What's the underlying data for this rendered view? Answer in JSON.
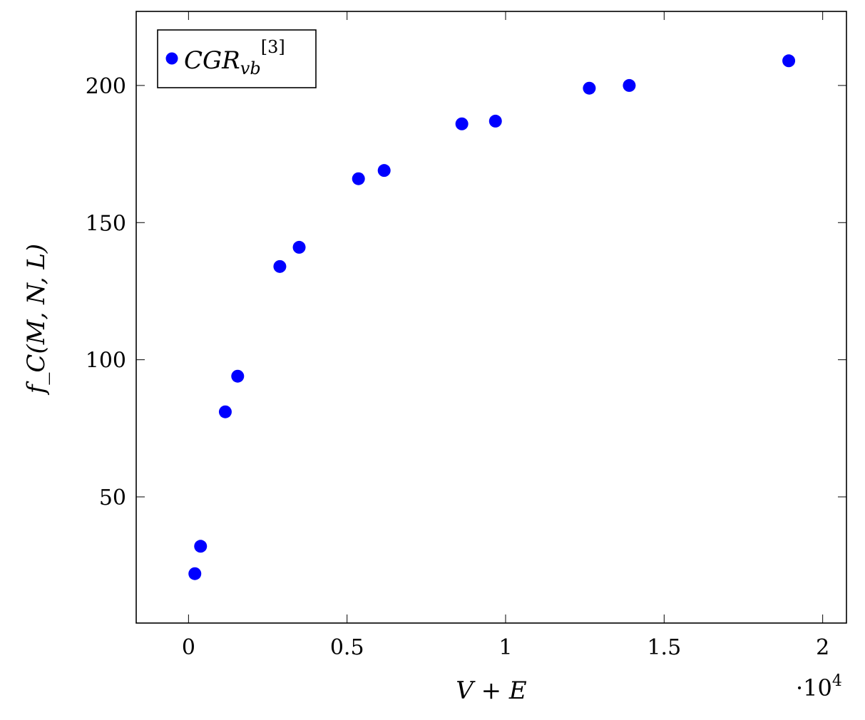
{
  "chart_data": {
    "type": "scatter",
    "xlabel": "V + E",
    "ylabel": "f_C(M, N, L)",
    "x_multiplier_label": "·10^4",
    "x_ticks": [
      0,
      0.5,
      1,
      1.5,
      2
    ],
    "x_tick_labels": [
      "0",
      "0.5",
      "1",
      "1.5",
      "2"
    ],
    "y_ticks": [
      50,
      100,
      150,
      200
    ],
    "y_tick_labels": [
      "50",
      "100",
      "150",
      "200"
    ],
    "xlim": [
      -0.165,
      2.075
    ],
    "ylim": [
      4,
      227
    ],
    "grid": false,
    "legend_position": "top-left",
    "series": [
      {
        "name": "CGR_vb^[3]",
        "color": "#0000ff",
        "points": [
          {
            "x": 0.02,
            "y": 22
          },
          {
            "x": 0.038,
            "y": 32
          },
          {
            "x": 0.116,
            "y": 81
          },
          {
            "x": 0.155,
            "y": 94
          },
          {
            "x": 0.288,
            "y": 134
          },
          {
            "x": 0.349,
            "y": 141
          },
          {
            "x": 0.536,
            "y": 166
          },
          {
            "x": 0.617,
            "y": 169
          },
          {
            "x": 0.862,
            "y": 186
          },
          {
            "x": 0.968,
            "y": 187
          },
          {
            "x": 1.264,
            "y": 199
          },
          {
            "x": 1.39,
            "y": 200
          },
          {
            "x": 1.893,
            "y": 209
          }
        ]
      }
    ]
  }
}
